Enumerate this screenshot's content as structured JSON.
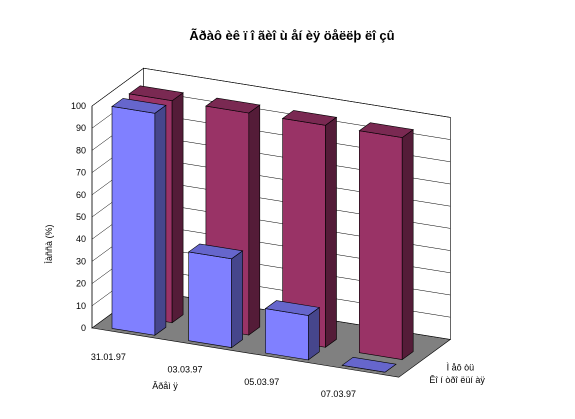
{
  "chart_data": {
    "type": "bar",
    "title": "Ãðàô èê ï î ãèî ù åí èÿ öåëëþ ëî çû",
    "xlabel": "Âðåì ÿ",
    "ylabel": "Ìàññà (%)",
    "ylim": [
      0,
      100
    ],
    "yticks": [
      0,
      10,
      20,
      30,
      40,
      50,
      60,
      70,
      80,
      90,
      100
    ],
    "categories": [
      "31.01.97",
      "03.03.97",
      "05.03.97",
      "07.03.97"
    ],
    "series": [
      {
        "name": "Ì åô òü",
        "color": "#993366",
        "values": [
          100,
          100,
          100,
          100
        ]
      },
      {
        "name": "Êî í òðî ëüí àÿ",
        "color": "#8080ff",
        "values": [
          100,
          40,
          20,
          0
        ]
      }
    ],
    "grid": true,
    "legend": "series labels on depth axis"
  }
}
